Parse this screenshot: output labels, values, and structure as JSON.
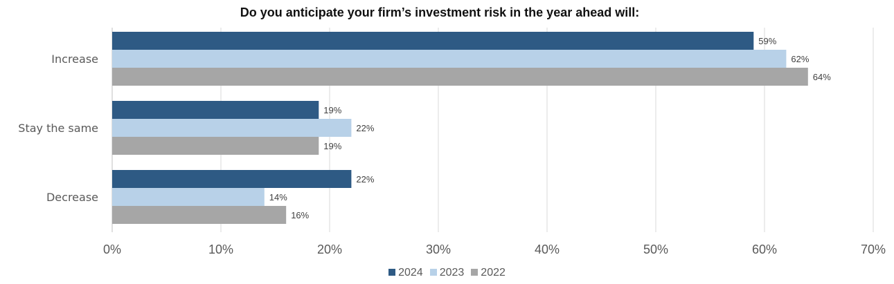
{
  "chart_data": {
    "type": "bar",
    "orientation": "horizontal",
    "title": "Do you anticipate your firm’s investment risk in the year ahead will:",
    "categories": [
      "Increase",
      "Stay the same",
      "Decrease"
    ],
    "series": [
      {
        "name": "2024",
        "color": "#2E5A84",
        "values": [
          59,
          19,
          22
        ],
        "labels": [
          "59%",
          "19%",
          "22%"
        ]
      },
      {
        "name": "2023",
        "color": "#B8D1E8",
        "values": [
          62,
          22,
          14
        ],
        "labels": [
          "62%",
          "22%",
          "14%"
        ]
      },
      {
        "name": "2022",
        "color": "#A6A6A6",
        "values": [
          64,
          19,
          16
        ],
        "labels": [
          "64%",
          "19%",
          "16%"
        ]
      }
    ],
    "xlim": [
      0,
      70
    ],
    "xticks": [
      0,
      10,
      20,
      30,
      40,
      50,
      60,
      70
    ],
    "xtick_labels": [
      "0%",
      "10%",
      "20%",
      "30%",
      "40%",
      "50%",
      "60%",
      "70%"
    ],
    "grid": "vertical",
    "legend_position": "bottom"
  }
}
